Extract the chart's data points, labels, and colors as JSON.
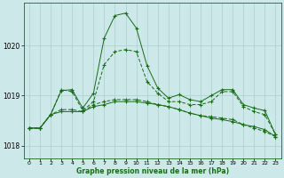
{
  "xlabel": "Graphe pression niveau de la mer (hPa)",
  "xlim": [
    -0.5,
    23.5
  ],
  "ylim": [
    1017.75,
    1020.85
  ],
  "yticks": [
    1018,
    1019,
    1020
  ],
  "xticks": [
    0,
    1,
    2,
    3,
    4,
    5,
    6,
    7,
    8,
    9,
    10,
    11,
    12,
    13,
    14,
    15,
    16,
    17,
    18,
    19,
    20,
    21,
    22,
    23
  ],
  "bg_color": "#cce8e8",
  "grid_color": "#aacfcf",
  "line_color": "#1a6b1a",
  "line1_y": [
    1018.35,
    1018.35,
    1018.62,
    1019.1,
    1019.12,
    1018.75,
    1019.05,
    1020.15,
    1020.6,
    1020.65,
    1020.35,
    1019.6,
    1019.15,
    1018.95,
    1019.02,
    1018.92,
    1018.88,
    1019.0,
    1019.12,
    1019.12,
    1018.82,
    1018.75,
    1018.7,
    1018.22
  ],
  "line2_y": [
    1018.35,
    1018.35,
    1018.62,
    1019.12,
    1019.08,
    1018.7,
    1018.88,
    1019.62,
    1019.88,
    1019.92,
    1019.88,
    1019.28,
    1019.05,
    1018.88,
    1018.88,
    1018.82,
    1018.82,
    1018.88,
    1019.08,
    1019.08,
    1018.78,
    1018.68,
    1018.62,
    1018.22
  ],
  "line3_y": [
    1018.35,
    1018.35,
    1018.62,
    1018.68,
    1018.68,
    1018.68,
    1018.78,
    1018.82,
    1018.88,
    1018.88,
    1018.88,
    1018.85,
    1018.82,
    1018.78,
    1018.72,
    1018.65,
    1018.6,
    1018.55,
    1018.52,
    1018.48,
    1018.42,
    1018.38,
    1018.32,
    1018.18
  ],
  "line4_y": [
    1018.35,
    1018.35,
    1018.62,
    1018.72,
    1018.72,
    1018.68,
    1018.82,
    1018.88,
    1018.92,
    1018.92,
    1018.92,
    1018.88,
    1018.82,
    1018.78,
    1018.72,
    1018.65,
    1018.6,
    1018.58,
    1018.55,
    1018.52,
    1018.42,
    1018.35,
    1018.28,
    1018.18
  ]
}
